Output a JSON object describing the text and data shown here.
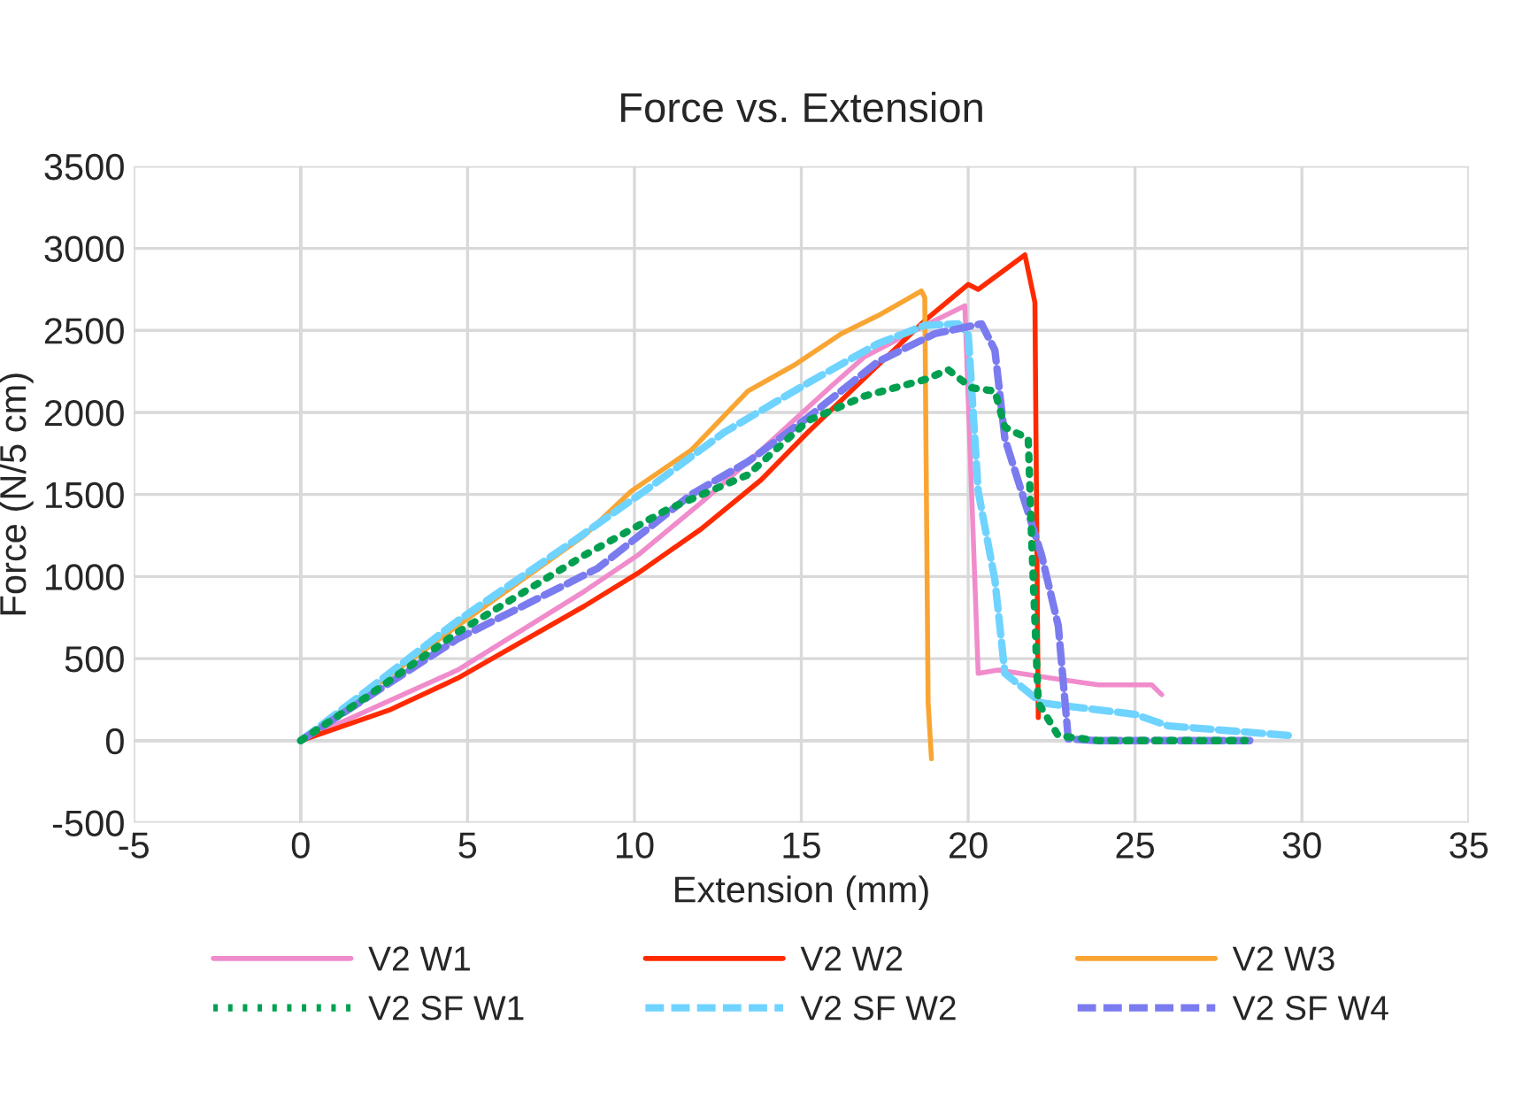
{
  "chart_data": {
    "type": "line",
    "title": "Force vs. Extension",
    "xlabel": "Extension (mm)",
    "ylabel": "Force (N/5 cm)",
    "xlim": [
      -5,
      35
    ],
    "ylim": [
      -500,
      3500
    ],
    "xticks": [
      -5,
      0,
      5,
      10,
      15,
      20,
      25,
      30,
      35
    ],
    "yticks": [
      -500,
      0,
      500,
      1000,
      1500,
      2000,
      2500,
      3000,
      3500
    ],
    "grid": true,
    "legend": "bottom",
    "marker": "none",
    "series": [
      {
        "name": "V2 W1",
        "color": "#f08ccc",
        "line_style": "solid",
        "x": [
          0,
          4.7,
          8.5,
          10.1,
          12.0,
          13.8,
          15.9,
          16.9,
          18.7,
          19.9,
          20.3,
          20.9,
          22.5,
          23.9,
          25.5,
          25.8
        ],
        "values": [
          0,
          430,
          910,
          1130,
          1450,
          1770,
          2160,
          2340,
          2530,
          2650,
          410,
          430,
          380,
          340,
          340,
          280
        ]
      },
      {
        "name": "V2 W2",
        "color": "#ff2a00",
        "line_style": "solid",
        "x": [
          0,
          2.7,
          4.7,
          8.5,
          10.1,
          12.0,
          13.8,
          15.2,
          18.7,
          20.0,
          20.3,
          21.7,
          22.0,
          22.1
        ],
        "values": [
          0,
          190,
          380,
          820,
          1020,
          1290,
          1590,
          1880,
          2560,
          2780,
          2750,
          2960,
          2670,
          140
        ]
      },
      {
        "name": "V2 W3",
        "color": "#f9a533",
        "line_style": "solid",
        "x": [
          0,
          4.7,
          8.5,
          9.9,
          11.7,
          13.4,
          14.8,
          16.2,
          17.3,
          18.6,
          18.7,
          18.8,
          18.9
        ],
        "values": [
          0,
          700,
          1250,
          1520,
          1770,
          2130,
          2290,
          2480,
          2590,
          2740,
          2700,
          230,
          -110
        ]
      },
      {
        "name": "V2 SF W1",
        "color": "#00a050",
        "line_style": "dotted",
        "x": [
          0,
          2.0,
          4.7,
          8.5,
          11.0,
          13.4,
          15.2,
          16.9,
          18.7,
          19.4,
          20.1,
          20.8,
          21.1,
          21.8,
          21.9,
          22.1,
          22.7,
          23.9,
          28.3
        ],
        "values": [
          0,
          270,
          660,
          1130,
          1410,
          1620,
          1950,
          2100,
          2200,
          2260,
          2150,
          2130,
          1910,
          1840,
          1240,
          230,
          30,
          0,
          0
        ]
      },
      {
        "name": "V2 SF W2",
        "color": "#6fd3ff",
        "line_style": "dashed",
        "x": [
          0,
          1.5,
          4.7,
          8.2,
          10.3,
          12.7,
          15.2,
          17.3,
          18.7,
          19.7,
          20.0,
          20.3,
          20.8,
          21.1,
          22.2,
          25.0,
          26.0,
          29.7
        ],
        "values": [
          0,
          230,
          730,
          1220,
          1520,
          1880,
          2180,
          2420,
          2530,
          2540,
          2480,
          1520,
          980,
          410,
          230,
          160,
          90,
          30
        ]
      },
      {
        "name": "V2 SF W4",
        "color": "#7b7bf0",
        "line_style": "dashed",
        "x": [
          0,
          4.7,
          8.9,
          11.7,
          13.4,
          15.2,
          17.3,
          19.0,
          20.4,
          20.8,
          21.1,
          22.2,
          22.7,
          23.0,
          23.9,
          28.5
        ],
        "values": [
          0,
          620,
          1050,
          1500,
          1700,
          1970,
          2310,
          2480,
          2540,
          2380,
          1840,
          1130,
          700,
          10,
          0,
          0
        ]
      }
    ]
  }
}
